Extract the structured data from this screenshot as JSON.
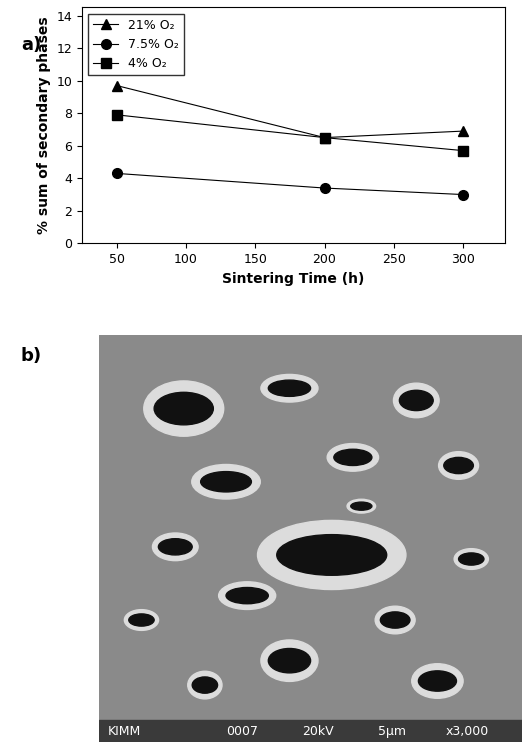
{
  "chart_data": {
    "type": "line",
    "x_label": "Sintering Time (h)",
    "y_label": "% sum of secondary phases",
    "x": [
      50,
      200,
      300
    ],
    "series": [
      {
        "name": "21% O₂",
        "color": "#000000",
        "marker": "triangle",
        "line_style": "solid",
        "values": [
          9.7,
          6.5,
          6.9
        ]
      },
      {
        "name": "7.5% O₂",
        "color": "#000000",
        "marker": "circle",
        "line_style": "solid",
        "values": [
          4.3,
          3.4,
          3.0
        ]
      },
      {
        "name": "4% O₂",
        "color": "#000000",
        "marker": "square",
        "line_style": "solid",
        "values": [
          7.9,
          6.5,
          5.7
        ]
      }
    ],
    "xlim": [
      25,
      330
    ],
    "xticks": [
      50,
      100,
      150,
      200,
      250,
      300
    ],
    "ylim": [
      0,
      14.5
    ],
    "yticks": [
      0,
      2,
      4,
      6,
      8,
      10,
      12,
      14
    ],
    "grid": false,
    "legend": "upper left"
  },
  "panel_labels": [
    "a)",
    "b)"
  ],
  "micrograph": {
    "caption": [
      "KIMM",
      "0007",
      "20kV",
      "5μm",
      "x3,000"
    ]
  }
}
